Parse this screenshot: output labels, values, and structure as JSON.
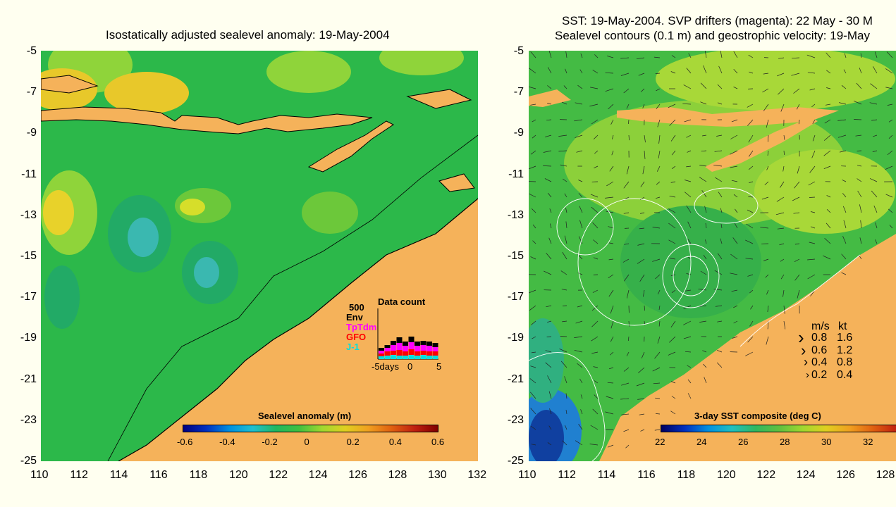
{
  "left_panel": {
    "title": "Isostatically adjusted sealevel anomaly: 19-May-2004",
    "colorbar_title": "Sealevel anomaly (m)",
    "colorbar_ticks": [
      "-0.6",
      "-0.4",
      "-0.2",
      "0",
      "0.2",
      "0.4",
      "0.6"
    ],
    "data_count": {
      "title": "Data count",
      "scale_label": "500",
      "satellites": [
        {
          "name": "Env",
          "color": "#000000"
        },
        {
          "name": "TpTdm",
          "color": "#ff00ff"
        },
        {
          "name": "GFO",
          "color": "#ff0000"
        },
        {
          "name": "J-1",
          "color": "#00e0e0"
        }
      ],
      "xlabel_left": "-5days",
      "xlabel_mid": "0",
      "xlabel_right": "5"
    }
  },
  "right_panel": {
    "title_line1": "SST: 19-May-2004. SVP drifters (magenta): 22 May - 30 M",
    "title_line2": "Sealevel contours (0.1 m) and geostrophic velocity: 19-May",
    "colorbar_title": "3-day SST composite (deg C)",
    "colorbar_ticks": [
      "22",
      "24",
      "26",
      "28",
      "30",
      "32"
    ],
    "velocity_legend": {
      "header_ms": "m/s",
      "header_kt": "kt",
      "rows": [
        {
          "ms": "0.8",
          "kt": "1.6"
        },
        {
          "ms": "0.6",
          "kt": "1.2"
        },
        {
          "ms": "0.4",
          "kt": "0.8"
        },
        {
          "ms": "0.2",
          "kt": "0.4"
        }
      ]
    }
  },
  "axes": {
    "y_ticks": [
      "-5",
      "-7",
      "-9",
      "-11",
      "-13",
      "-15",
      "-17",
      "-19",
      "-21",
      "-23",
      "-25"
    ],
    "x_ticks_left": [
      "110",
      "112",
      "114",
      "116",
      "118",
      "120",
      "122",
      "124",
      "126",
      "128",
      "130",
      "132"
    ],
    "x_ticks_right": [
      "110",
      "112",
      "114",
      "116",
      "118",
      "120",
      "122",
      "124",
      "126",
      "128"
    ]
  },
  "colors": {
    "land": "#f5b25a",
    "ocean_green": "#2cb84a",
    "background": "#fffff0"
  }
}
